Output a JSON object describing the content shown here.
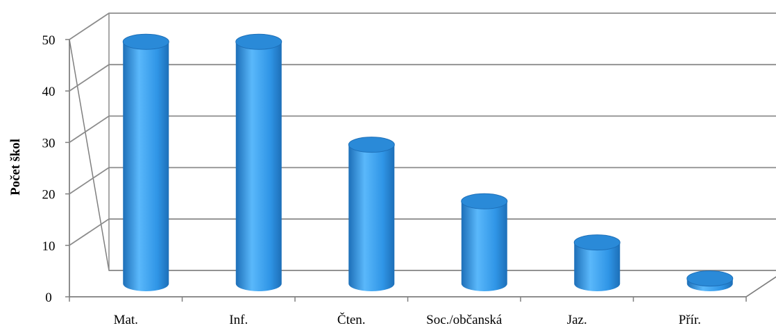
{
  "chart_data": {
    "type": "bar",
    "title": "",
    "xlabel": "",
    "ylabel": "Počet škol",
    "ylim": [
      0,
      50
    ],
    "yticks": [
      0,
      10,
      20,
      30,
      40,
      50
    ],
    "grid": true,
    "style": "3d-cylinder",
    "categories": [
      "Mat.",
      "Inf.",
      "Čten.",
      "Soc./občanská",
      "Jaz.",
      "Přír."
    ],
    "values": [
      47,
      47,
      27,
      16,
      8,
      1
    ],
    "colors": {
      "bar_light": "#5ab8fb",
      "bar_mid": "#2f95e6",
      "bar_dark": "#1d6fb8",
      "bar_top": "#2a8ad8",
      "grid": "#8c8c8c",
      "wall": "#7f7f7f"
    }
  }
}
